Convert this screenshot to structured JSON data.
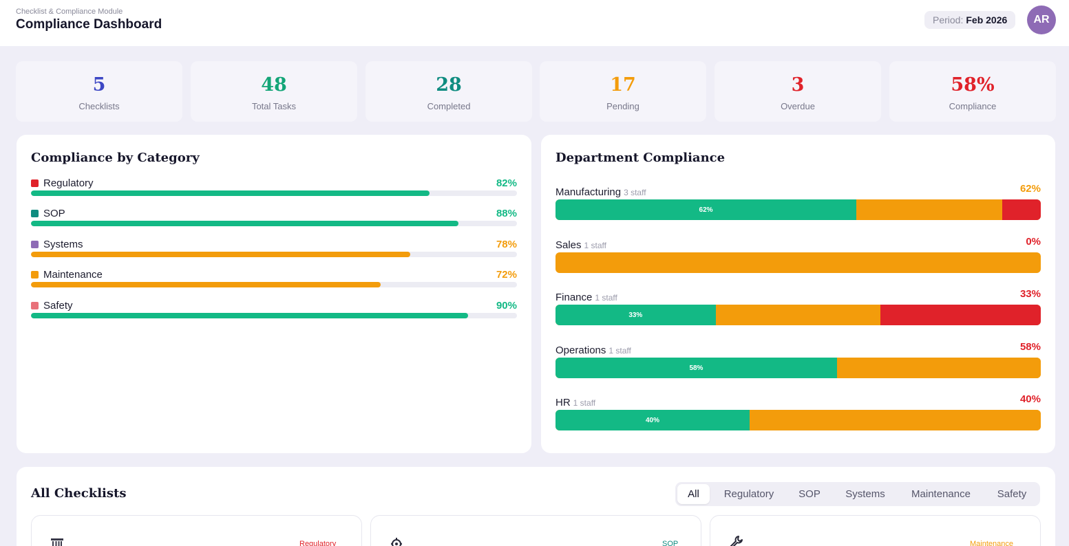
{
  "header": {
    "breadcrumb": "Checklist & Compliance Module",
    "title": "Compliance Dashboard",
    "period_label": "Period:",
    "period_value": "Feb 2026",
    "avatar_initials": "AR"
  },
  "stats": [
    {
      "value": "5",
      "label": "Checklists",
      "color": "#3d47c4"
    },
    {
      "value": "48",
      "label": "Total Tasks",
      "color": "#13a577"
    },
    {
      "value": "28",
      "label": "Completed",
      "color": "#0f8c80"
    },
    {
      "value": "17",
      "label": "Pending",
      "color": "#f39c0b"
    },
    {
      "value": "3",
      "label": "Overdue",
      "color": "#e0222a"
    },
    {
      "value": "58%",
      "label": "Compliance",
      "color": "#e0222a"
    }
  ],
  "category_card": {
    "title": "Compliance by Category",
    "items": [
      {
        "name": "Regulatory",
        "pct_label": "82%",
        "value": 82,
        "swatch": "#e0222a",
        "bar_color": "#13b985",
        "pct_color": "#13b985"
      },
      {
        "name": "SOP",
        "pct_label": "88%",
        "value": 88,
        "swatch": "#0f8c80",
        "bar_color": "#13b985",
        "pct_color": "#13b985"
      },
      {
        "name": "Systems",
        "pct_label": "78%",
        "value": 78,
        "swatch": "#8e6bb5",
        "bar_color": "#f39c0b",
        "pct_color": "#f39c0b"
      },
      {
        "name": "Maintenance",
        "pct_label": "72%",
        "value": 72,
        "swatch": "#f39c0b",
        "bar_color": "#f39c0b",
        "pct_color": "#f39c0b"
      },
      {
        "name": "Safety",
        "pct_label": "90%",
        "value": 90,
        "swatch": "#e8717a",
        "bar_color": "#13b985",
        "pct_color": "#13b985"
      }
    ]
  },
  "department_card": {
    "title": "Department Compliance",
    "items": [
      {
        "name": "Manufacturing",
        "staff": "3 staff",
        "pct_label": "62%",
        "pct_color": "#f39c0b",
        "completed": 62,
        "pending": 30,
        "overdue": 8,
        "segment_label": "62%"
      },
      {
        "name": "Sales",
        "staff": "1 staff",
        "pct_label": "0%",
        "pct_color": "#e0222a",
        "completed": 0,
        "pending": 100,
        "overdue": 0,
        "segment_label": ""
      },
      {
        "name": "Finance",
        "staff": "1 staff",
        "pct_label": "33%",
        "pct_color": "#e0222a",
        "completed": 33,
        "pending": 34,
        "overdue": 33,
        "segment_label": "33%"
      },
      {
        "name": "Operations",
        "staff": "1 staff",
        "pct_label": "58%",
        "pct_color": "#e0222a",
        "completed": 58,
        "pending": 42,
        "overdue": 0,
        "segment_label": "58%"
      },
      {
        "name": "HR",
        "staff": "1 staff",
        "pct_label": "40%",
        "pct_color": "#e0222a",
        "completed": 40,
        "pending": 60,
        "overdue": 0,
        "segment_label": "40%"
      }
    ],
    "colors": {
      "completed": "#13b985",
      "pending": "#f39c0b",
      "overdue": "#e0222a"
    }
  },
  "checklists": {
    "title": "All Checklists",
    "tabs": [
      "All",
      "Regulatory",
      "SOP",
      "Systems",
      "Maintenance",
      "Safety"
    ],
    "active_tab": "All",
    "cards": [
      {
        "tag": "Regulatory",
        "tag_color": "#e0222a",
        "icon": "building-icon"
      },
      {
        "tag": "SOP",
        "tag_color": "#0f8c80",
        "icon": "gear-icon"
      },
      {
        "tag": "Maintenance",
        "tag_color": "#f39c0b",
        "icon": "wrench-icon"
      }
    ]
  }
}
